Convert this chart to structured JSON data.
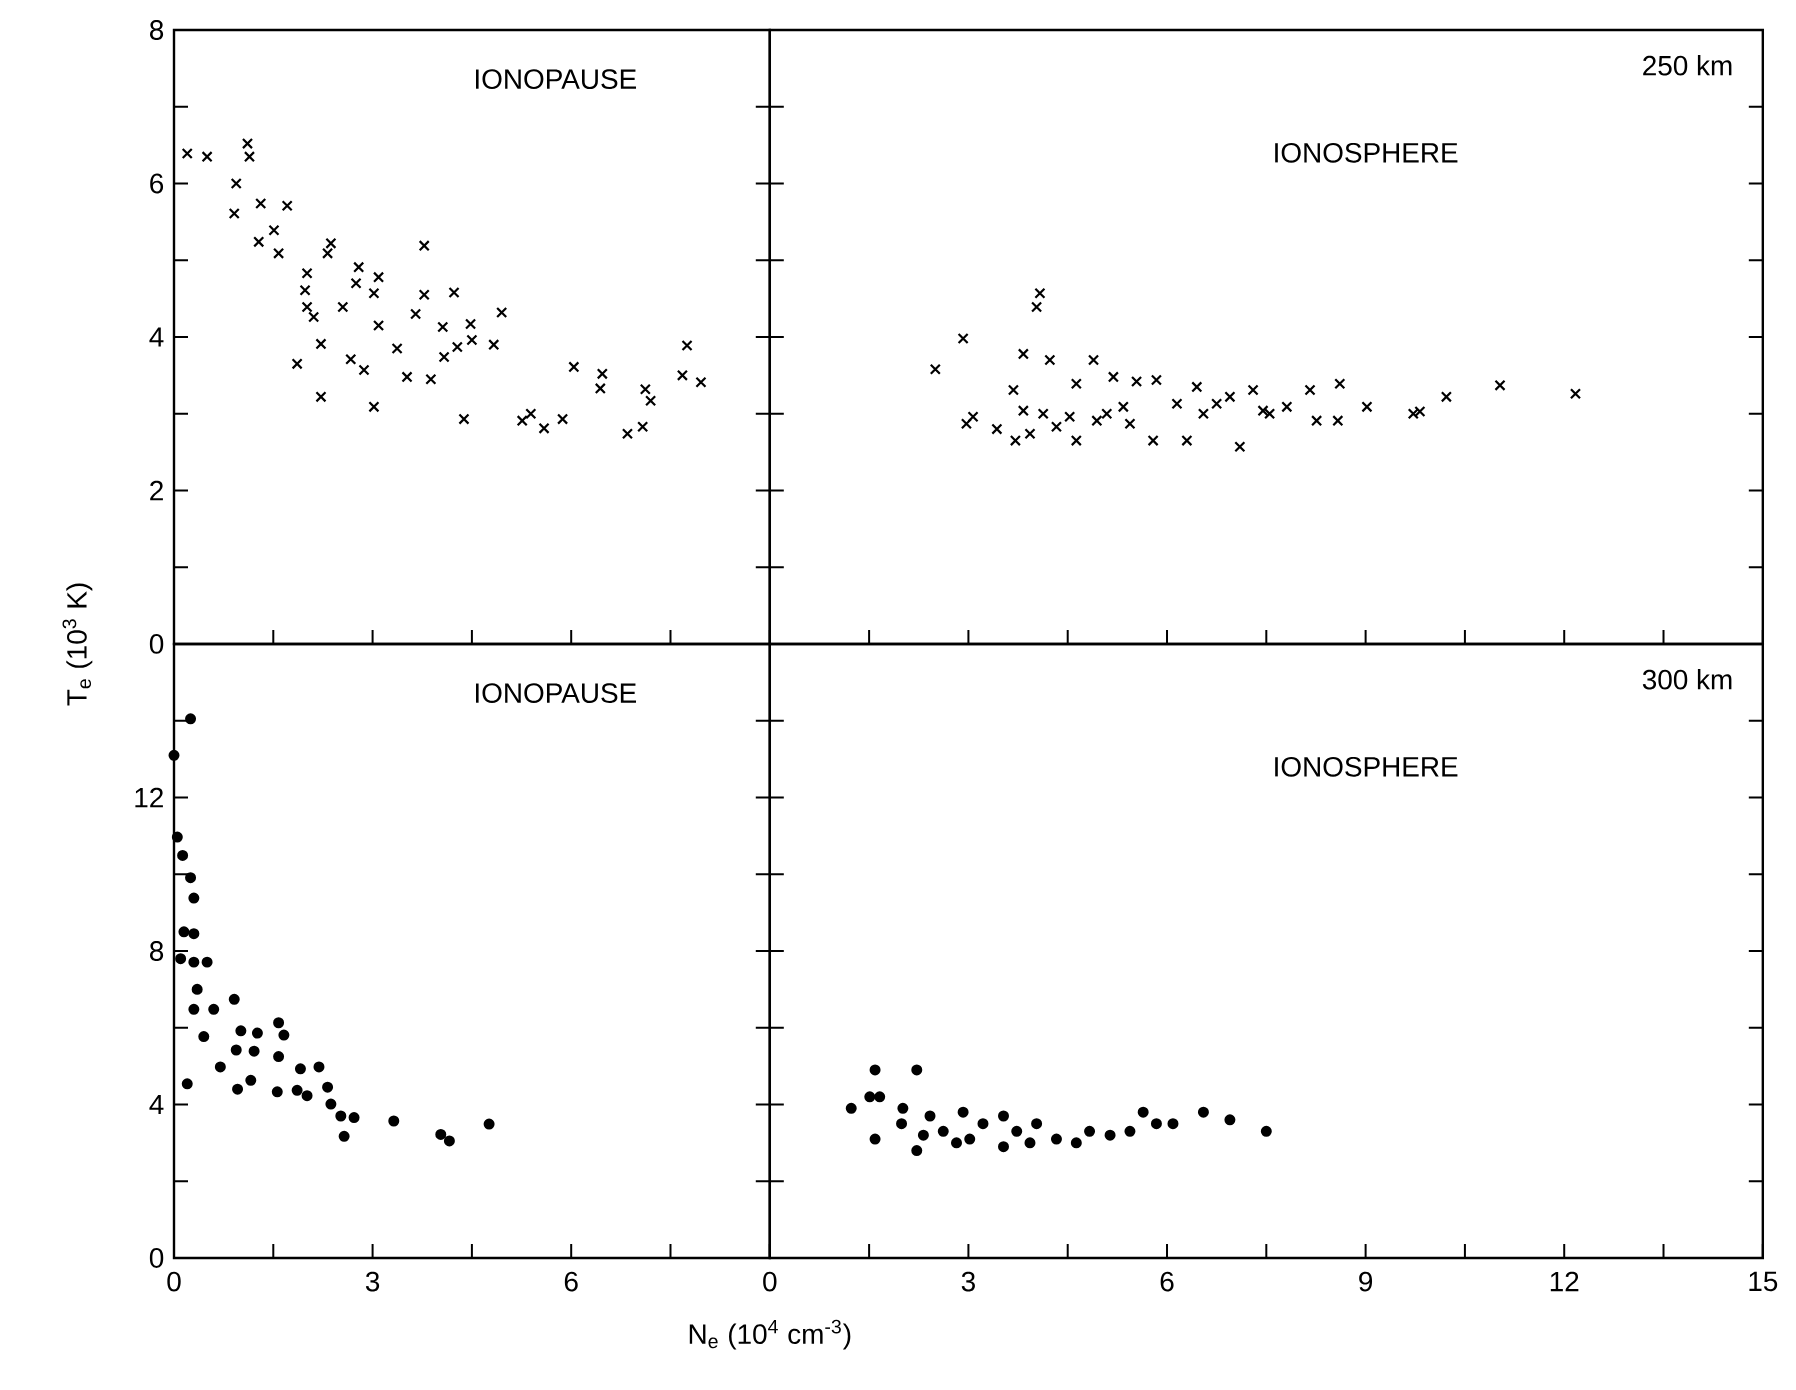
{
  "chart_data": [
    {
      "type": "scatter",
      "marker": "cross",
      "color": "#000000",
      "tick_labels": "y",
      "annotations": [
        "IONOPAUSE"
      ],
      "xlim": [
        0,
        9
      ],
      "ylim": [
        0,
        8
      ],
      "xticks": [
        0,
        {
          "value": 1.5,
          "label": null
        },
        {
          "value": 3,
          "label": null
        },
        {
          "value": 4.5,
          "label": null
        },
        {
          "value": 6,
          "label": null
        },
        {
          "value": 7.5,
          "label": null
        }
      ],
      "yticks": [
        0,
        {
          "value": 1,
          "label": null
        },
        2,
        {
          "value": 3,
          "label": null
        },
        4,
        {
          "value": 5,
          "label": null
        },
        6,
        {
          "value": 7,
          "label": null
        },
        8
      ],
      "x": [
        0.2,
        0.5,
        1.11,
        1.14,
        0.94,
        0.91,
        1.31,
        1.71,
        1.28,
        1.51,
        1.58,
        2.37,
        2.32,
        2.01,
        1.98,
        2.01,
        2.11,
        2.79,
        2.75,
        3.09,
        3.02,
        2.55,
        3.09,
        3.78,
        3.78,
        3.65,
        4.23,
        4.06,
        4.48,
        4.5,
        4.28,
        4.08,
        3.88,
        4.95,
        4.83,
        3.37,
        3.52,
        2.67,
        2.87,
        2.22,
        1.86,
        2.22,
        3.02,
        4.38,
        5.26,
        5.39,
        5.59,
        5.87,
        6.04,
        6.47,
        6.44,
        7.12,
        7.2,
        6.85,
        7.08,
        7.75,
        7.68,
        7.96
      ],
      "values": [
        6.39,
        6.35,
        6.52,
        6.35,
        6.0,
        5.61,
        5.74,
        5.71,
        5.24,
        5.39,
        5.09,
        5.22,
        5.09,
        4.83,
        4.61,
        4.39,
        4.26,
        4.91,
        4.7,
        4.78,
        4.57,
        4.39,
        4.15,
        5.19,
        4.55,
        4.3,
        4.58,
        4.13,
        4.17,
        3.96,
        3.87,
        3.74,
        3.45,
        4.32,
        3.9,
        3.85,
        3.48,
        3.71,
        3.57,
        3.91,
        3.65,
        3.22,
        3.09,
        2.93,
        2.91,
        3.0,
        2.81,
        2.93,
        3.61,
        3.52,
        3.33,
        3.32,
        3.17,
        2.74,
        2.83,
        3.89,
        3.5,
        3.41
      ]
    },
    {
      "type": "scatter",
      "marker": "cross",
      "color": "#000000",
      "tick_labels": false,
      "annotations": [
        "250 km",
        "IONOSPHERE"
      ],
      "xlim": [
        0,
        15
      ],
      "ylim": [
        0,
        8
      ],
      "xticks": [
        0,
        {
          "value": 1.5,
          "label": null
        },
        3,
        {
          "value": 4.5,
          "label": null
        },
        6,
        {
          "value": 7.5,
          "label": null
        },
        9,
        {
          "value": 10.5,
          "label": null
        },
        12,
        {
          "value": 13.5,
          "label": null
        },
        15
      ],
      "yticks": [
        0,
        {
          "value": 1,
          "label": null
        },
        2,
        {
          "value": 3,
          "label": null
        },
        4,
        {
          "value": 5,
          "label": null
        },
        6,
        {
          "value": 7,
          "label": null
        },
        8
      ],
      "x": [
        2.5,
        2.92,
        4.08,
        4.03,
        2.97,
        3.07,
        3.43,
        3.71,
        3.83,
        3.68,
        4.23,
        4.89,
        4.63,
        3.93,
        4.33,
        4.63,
        5.19,
        5.09,
        5.54,
        5.84,
        5.44,
        5.79,
        6.45,
        6.3,
        6.55,
        6.95,
        7.1,
        7.3,
        7.55,
        7.81,
        8.16,
        8.26,
        8.61,
        8.58,
        9.02,
        9.72,
        9.82,
        10.22,
        11.03,
        12.17,
        4.13,
        4.53,
        5.34,
        6.15,
        6.75,
        7.45,
        3.83,
        4.94
      ],
      "values": [
        3.58,
        3.98,
        4.57,
        4.39,
        2.87,
        2.96,
        2.8,
        2.65,
        3.78,
        3.31,
        3.7,
        3.7,
        3.39,
        2.74,
        2.83,
        2.65,
        3.48,
        3.0,
        3.42,
        3.44,
        2.87,
        2.65,
        3.35,
        2.65,
        3.0,
        3.22,
        2.57,
        3.31,
        3.0,
        3.09,
        3.31,
        2.91,
        3.39,
        2.91,
        3.09,
        3.0,
        3.03,
        3.22,
        3.37,
        3.26,
        3.0,
        2.96,
        3.09,
        3.13,
        3.13,
        3.04,
        3.04,
        2.91
      ]
    },
    {
      "type": "scatter",
      "marker": "circle",
      "color": "#000000",
      "annotations": [
        "IONOPAUSE"
      ],
      "xlabel": "N$_{e}$ (10$^{4}$ cm$^{-3}$)",
      "ylabel": "T$_{e}$ (10$^{3}$ K)",
      "xlim": [
        0,
        9
      ],
      "ylim": [
        0,
        16
      ],
      "xticks": [
        0,
        {
          "value": 1.5,
          "label": null
        },
        3,
        {
          "value": 4.5,
          "label": null
        },
        6,
        {
          "value": 7.5,
          "label": null
        }
      ],
      "yticks": [
        0,
        {
          "value": 2,
          "label": null
        },
        4,
        {
          "value": 6,
          "label": null
        },
        8,
        {
          "value": 10,
          "label": null
        },
        12,
        {
          "value": 14,
          "label": null
        }
      ],
      "x": [
        0.25,
        0.0,
        0.05,
        0.13,
        0.25,
        0.3,
        0.15,
        0.3,
        0.1,
        0.3,
        0.5,
        0.35,
        0.3,
        0.6,
        0.91,
        0.45,
        0.2,
        0.7,
        0.94,
        1.01,
        1.26,
        1.21,
        0.96,
        1.16,
        1.58,
        1.66,
        1.58,
        1.56,
        1.91,
        2.19,
        1.86,
        2.01,
        2.32,
        2.37,
        2.52,
        2.72,
        2.57,
        3.32,
        4.03,
        4.16,
        4.76
      ],
      "values": [
        14.05,
        13.1,
        10.97,
        10.49,
        9.91,
        9.38,
        8.5,
        8.45,
        7.8,
        7.71,
        7.71,
        7.0,
        6.48,
        6.48,
        6.74,
        5.77,
        4.54,
        4.98,
        5.42,
        5.92,
        5.86,
        5.39,
        4.4,
        4.63,
        6.13,
        5.81,
        5.25,
        4.33,
        4.93,
        4.98,
        4.37,
        4.23,
        4.45,
        4.01,
        3.7,
        3.66,
        3.17,
        3.57,
        3.22,
        3.05,
        3.49
      ]
    },
    {
      "type": "scatter",
      "marker": "circle",
      "color": "#000000",
      "tick_labels": "x",
      "annotations": [
        "300 km",
        "IONOSPHERE"
      ],
      "xlim": [
        0,
        15
      ],
      "ylim": [
        0,
        16
      ],
      "xticks": [
        0,
        {
          "value": 1.5,
          "label": null
        },
        3,
        {
          "value": 4.5,
          "label": null
        },
        6,
        {
          "value": 7.5,
          "label": null
        },
        9,
        {
          "value": 10.5,
          "label": null
        },
        12,
        {
          "value": 13.5,
          "label": null
        },
        15
      ],
      "yticks": [
        0,
        {
          "value": 2,
          "label": null
        },
        4,
        {
          "value": 6,
          "label": null
        },
        8,
        {
          "value": 10,
          "label": null
        },
        12,
        {
          "value": 14,
          "label": null
        }
      ],
      "x": [
        1.59,
        2.22,
        1.23,
        1.51,
        1.66,
        1.59,
        2.01,
        1.99,
        2.22,
        2.42,
        2.32,
        2.62,
        2.92,
        3.02,
        3.22,
        3.53,
        3.53,
        3.73,
        4.03,
        4.33,
        4.63,
        4.83,
        5.14,
        5.44,
        5.64,
        5.84,
        6.09,
        6.55,
        6.95,
        7.5,
        2.82,
        3.93
      ],
      "values": [
        4.9,
        4.9,
        3.9,
        4.2,
        4.2,
        3.1,
        3.9,
        3.5,
        2.8,
        3.7,
        3.2,
        3.3,
        3.8,
        3.1,
        3.5,
        3.7,
        2.9,
        3.3,
        3.5,
        3.1,
        3.0,
        3.3,
        3.2,
        3.3,
        3.8,
        3.5,
        3.5,
        3.8,
        3.6,
        3.3,
        3.0,
        3.0
      ]
    }
  ]
}
